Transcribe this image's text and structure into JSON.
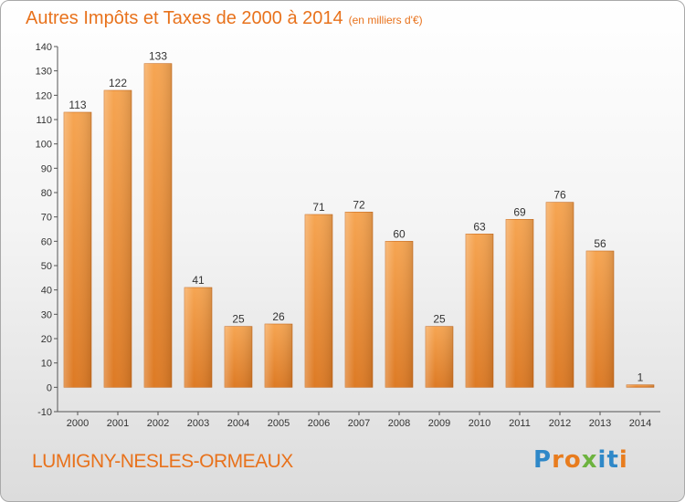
{
  "header": {
    "title": "Autres Impôts et Taxes de 2000 à 2014",
    "subtitle": "(en milliers d'€)"
  },
  "footer": {
    "place": "LUMIGNY-NESLES-ORMEAUX",
    "logo": [
      "P",
      "r",
      "o",
      "x",
      "i",
      "t",
      "i"
    ]
  },
  "colors": {
    "bar": "#f0923a",
    "bar_dark": "#d8721c",
    "title": "#e8721c",
    "logo": [
      "#2f88c8",
      "#e87c1e",
      "#e87c1e",
      "#6db33f",
      "#2f88c8",
      "#2f88c8",
      "#e87c1e"
    ]
  },
  "chart_data": {
    "type": "bar",
    "categories": [
      "2000",
      "2001",
      "2002",
      "2003",
      "2004",
      "2005",
      "2006",
      "2007",
      "2008",
      "2009",
      "2010",
      "2011",
      "2012",
      "2013",
      "2014"
    ],
    "values": [
      113,
      122,
      133,
      41,
      25,
      26,
      71,
      72,
      60,
      25,
      63,
      69,
      76,
      56,
      1
    ],
    "ylim": [
      -10,
      140
    ],
    "yticks": [
      -10,
      0,
      10,
      20,
      30,
      40,
      50,
      60,
      70,
      80,
      90,
      100,
      110,
      120,
      130,
      140
    ],
    "grid": false,
    "data_labels": true
  }
}
